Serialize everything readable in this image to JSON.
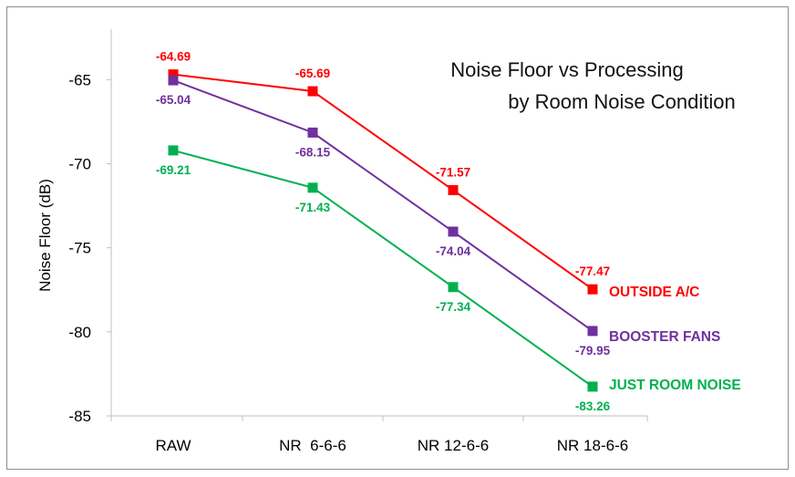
{
  "chart_data": {
    "type": "line",
    "title_line1": "Noise Floor vs Processing",
    "title_line2": "by Room Noise Condition",
    "xlabel": "",
    "ylabel": "Noise Floor (dB)",
    "categories": [
      "RAW",
      "NR  6-6-6",
      "NR 12-6-6",
      "NR 18-6-6"
    ],
    "ylim": [
      -85,
      -62
    ],
    "yticks": [
      -65,
      -70,
      -75,
      -80,
      -85
    ],
    "grid": false,
    "legend": "inline-right",
    "series": [
      {
        "name": "OUTSIDE A/C",
        "color": "#ff0000",
        "values": [
          -64.69,
          -65.69,
          -71.57,
          -77.47
        ],
        "labels": [
          "-64.69",
          "-65.69",
          "-71.57",
          "-77.47"
        ],
        "label_pos": [
          "above",
          "above",
          "above",
          "above"
        ]
      },
      {
        "name": "BOOSTER FANS",
        "color": "#7030a0",
        "values": [
          -65.04,
          -68.15,
          -74.04,
          -79.95
        ],
        "labels": [
          "-65.04",
          "-68.15",
          "-74.04",
          "-79.95"
        ],
        "label_pos": [
          "below",
          "below",
          "below",
          "below"
        ]
      },
      {
        "name": "JUST ROOM NOISE",
        "color": "#00b050",
        "values": [
          -69.21,
          -71.43,
          -77.34,
          -83.26
        ],
        "labels": [
          "-69.21",
          "-71.43",
          "-77.34",
          "-83.26"
        ],
        "label_pos": [
          "below",
          "below",
          "below",
          "below"
        ]
      }
    ]
  }
}
